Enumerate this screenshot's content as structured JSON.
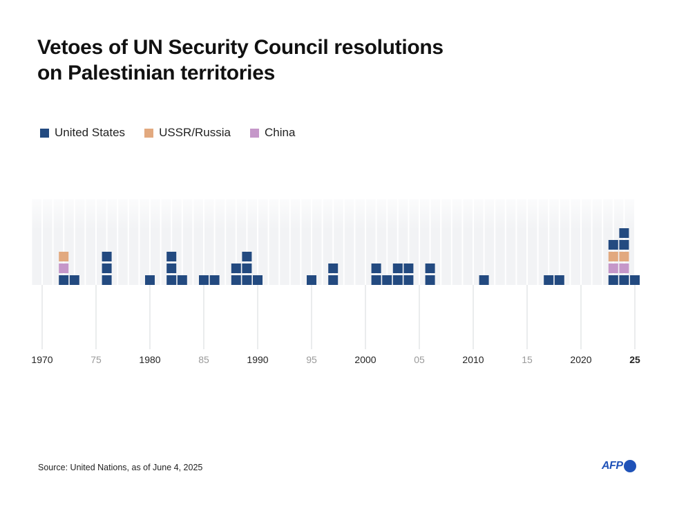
{
  "chart_data": {
    "type": "unit-stacked-bar",
    "title": [
      "Vetoes of UN Security Council resolutions",
      "on Palestinian territories"
    ],
    "legend": [
      {
        "key": "us",
        "name": "United States",
        "color": "#234a80"
      },
      {
        "key": "ru",
        "name": "USSR/Russia",
        "color": "#e2a97f"
      },
      {
        "key": "cn",
        "name": "China",
        "color": "#c597c9"
      }
    ],
    "legend_placement": "top-left",
    "xlim": [
      1970,
      2025
    ],
    "x_ticks": [
      {
        "year": 1970,
        "label": "1970",
        "style": "major"
      },
      {
        "year": 1975,
        "label": "75",
        "style": "minor"
      },
      {
        "year": 1980,
        "label": "1980",
        "style": "major"
      },
      {
        "year": 1985,
        "label": "85",
        "style": "minor"
      },
      {
        "year": 1990,
        "label": "1990",
        "style": "major"
      },
      {
        "year": 1995,
        "label": "95",
        "style": "minor"
      },
      {
        "year": 2000,
        "label": "2000",
        "style": "major"
      },
      {
        "year": 2005,
        "label": "05",
        "style": "minor"
      },
      {
        "year": 2010,
        "label": "2010",
        "style": "major"
      },
      {
        "year": 2015,
        "label": "15",
        "style": "minor"
      },
      {
        "year": 2020,
        "label": "2020",
        "style": "major"
      },
      {
        "year": 2025,
        "label": "25",
        "style": "bold"
      }
    ],
    "stacks_bottom_to_top": [
      {
        "year": 1972,
        "vetoes": [
          "us",
          "cn",
          "ru"
        ]
      },
      {
        "year": 1973,
        "vetoes": [
          "us"
        ]
      },
      {
        "year": 1976,
        "vetoes": [
          "us",
          "us",
          "us"
        ]
      },
      {
        "year": 1980,
        "vetoes": [
          "us"
        ]
      },
      {
        "year": 1982,
        "vetoes": [
          "us",
          "us",
          "us"
        ]
      },
      {
        "year": 1983,
        "vetoes": [
          "us"
        ]
      },
      {
        "year": 1985,
        "vetoes": [
          "us"
        ]
      },
      {
        "year": 1986,
        "vetoes": [
          "us"
        ]
      },
      {
        "year": 1988,
        "vetoes": [
          "us",
          "us"
        ]
      },
      {
        "year": 1989,
        "vetoes": [
          "us",
          "us",
          "us"
        ]
      },
      {
        "year": 1990,
        "vetoes": [
          "us"
        ]
      },
      {
        "year": 1995,
        "vetoes": [
          "us"
        ]
      },
      {
        "year": 1997,
        "vetoes": [
          "us",
          "us"
        ]
      },
      {
        "year": 2001,
        "vetoes": [
          "us",
          "us"
        ]
      },
      {
        "year": 2002,
        "vetoes": [
          "us"
        ]
      },
      {
        "year": 2003,
        "vetoes": [
          "us",
          "us"
        ]
      },
      {
        "year": 2004,
        "vetoes": [
          "us",
          "us"
        ]
      },
      {
        "year": 2006,
        "vetoes": [
          "us",
          "us"
        ]
      },
      {
        "year": 2011,
        "vetoes": [
          "us"
        ]
      },
      {
        "year": 2017,
        "vetoes": [
          "us"
        ]
      },
      {
        "year": 2018,
        "vetoes": [
          "us"
        ]
      },
      {
        "year": 2023,
        "vetoes": [
          "us",
          "cn",
          "ru",
          "us"
        ]
      },
      {
        "year": 2024,
        "vetoes": [
          "us",
          "cn",
          "ru",
          "us",
          "us"
        ]
      },
      {
        "year": 2025,
        "vetoes": [
          "us"
        ]
      }
    ]
  },
  "footer": {
    "source": "Source: United Nations, as of June 4, 2025",
    "logo_text": "AFP"
  }
}
